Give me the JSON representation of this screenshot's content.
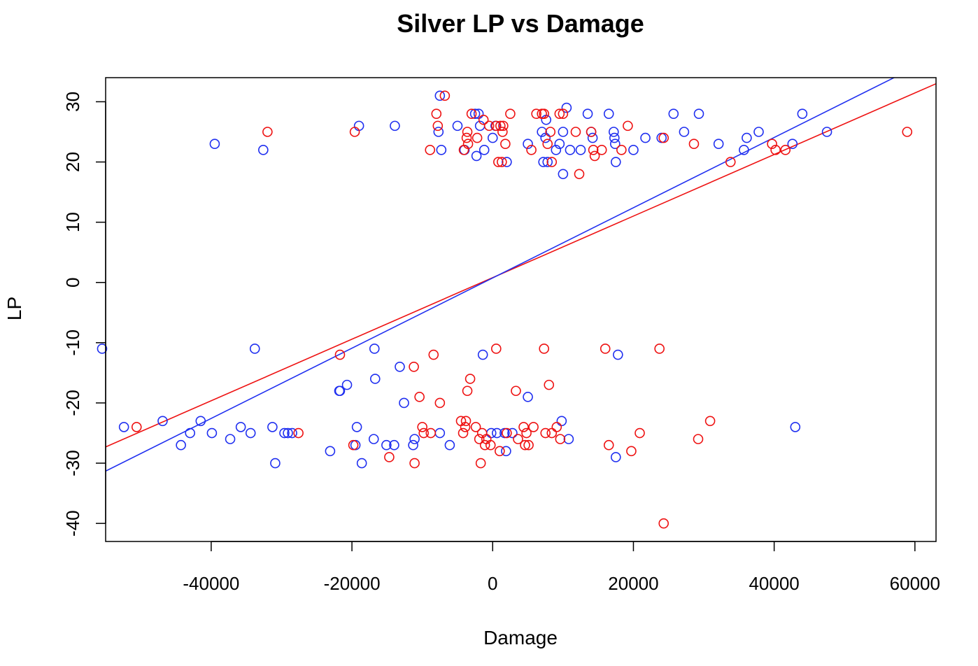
{
  "chart_data": {
    "type": "scatter",
    "title": "Silver LP vs Damage",
    "xlabel": "Damage",
    "ylabel": "LP",
    "xlim": [
      -55000,
      63000
    ],
    "ylim": [
      -43,
      34
    ],
    "xticks": [
      -40000,
      -20000,
      0,
      20000,
      40000,
      60000
    ],
    "yticks": [
      -40,
      -30,
      -20,
      -10,
      0,
      10,
      20,
      30
    ],
    "xtick_labels": [
      "-40000",
      "-20000",
      "0",
      "20000",
      "40000",
      "60000"
    ],
    "ytick_labels": [
      "-40",
      "-30",
      "-20",
      "-10",
      "0",
      "10",
      "20",
      "30"
    ],
    "grid": false,
    "colors": {
      "blue": "#1f2ff0",
      "red": "#ee1111"
    },
    "series": [
      {
        "color": "blue",
        "points": [
          [
            -7500,
            31
          ],
          [
            -7700,
            25
          ],
          [
            -7300,
            22
          ],
          [
            -5000,
            26
          ],
          [
            -4000,
            22
          ],
          [
            -2500,
            28
          ],
          [
            -2000,
            28
          ],
          [
            -2300,
            21
          ],
          [
            -1800,
            26
          ],
          [
            -1200,
            22
          ],
          [
            0,
            24
          ],
          [
            400,
            26
          ],
          [
            2000,
            20
          ],
          [
            5000,
            23
          ],
          [
            7000,
            25
          ],
          [
            7200,
            20
          ],
          [
            7500,
            24
          ],
          [
            7600,
            27
          ],
          [
            7800,
            20
          ],
          [
            9000,
            22
          ],
          [
            9500,
            23
          ],
          [
            10000,
            18
          ],
          [
            10000,
            25
          ],
          [
            10500,
            29
          ],
          [
            11000,
            22
          ],
          [
            12500,
            22
          ],
          [
            13500,
            28
          ],
          [
            14000,
            25
          ],
          [
            14200,
            24
          ],
          [
            16500,
            28
          ],
          [
            17200,
            25
          ],
          [
            17300,
            24
          ],
          [
            17400,
            23
          ],
          [
            17500,
            20
          ],
          [
            20000,
            22
          ],
          [
            21700,
            24
          ],
          [
            24000,
            24
          ],
          [
            25700,
            28
          ],
          [
            27200,
            25
          ],
          [
            29300,
            28
          ],
          [
            32100,
            23
          ],
          [
            35700,
            22
          ],
          [
            36100,
            24
          ],
          [
            37800,
            25
          ],
          [
            42600,
            23
          ],
          [
            44000,
            28
          ],
          [
            47500,
            25
          ],
          [
            -19000,
            26
          ],
          [
            -13900,
            26
          ],
          [
            -32600,
            22
          ],
          [
            -39500,
            23
          ],
          [
            -55500,
            -11
          ],
          [
            -33800,
            -11
          ],
          [
            -21800,
            -18
          ],
          [
            -21700,
            -18
          ],
          [
            -20700,
            -17
          ],
          [
            -16800,
            -11
          ],
          [
            -16700,
            -16
          ],
          [
            -13200,
            -14
          ],
          [
            -12600,
            -20
          ],
          [
            -11300,
            -27
          ],
          [
            -11100,
            -26
          ],
          [
            -7500,
            -25
          ],
          [
            -6100,
            -27
          ],
          [
            -1400,
            -12
          ],
          [
            1900,
            -28
          ],
          [
            5000,
            -19
          ],
          [
            9800,
            -23
          ],
          [
            10800,
            -26
          ],
          [
            17500,
            -29
          ],
          [
            17800,
            -12
          ],
          [
            43000,
            -24
          ],
          [
            -52400,
            -24
          ],
          [
            -46900,
            -23
          ],
          [
            -44300,
            -27
          ],
          [
            -43000,
            -25
          ],
          [
            -41500,
            -23
          ],
          [
            -39900,
            -25
          ],
          [
            -37300,
            -26
          ],
          [
            -35800,
            -24
          ],
          [
            -34400,
            -25
          ],
          [
            -31300,
            -24
          ],
          [
            -30900,
            -30
          ],
          [
            -29600,
            -25
          ],
          [
            -29100,
            -25
          ],
          [
            -28500,
            -25
          ],
          [
            -23100,
            -28
          ],
          [
            -19500,
            -27
          ],
          [
            -19300,
            -24
          ],
          [
            -18600,
            -30
          ],
          [
            -16900,
            -26
          ],
          [
            -15100,
            -27
          ],
          [
            -14000,
            -27
          ],
          [
            -200,
            -25
          ],
          [
            600,
            -25
          ],
          [
            1700,
            -25
          ],
          [
            2800,
            -25
          ]
        ]
      },
      {
        "color": "red",
        "points": [
          [
            -6800,
            31
          ],
          [
            -8000,
            28
          ],
          [
            -7800,
            26
          ],
          [
            -8900,
            22
          ],
          [
            -4100,
            22
          ],
          [
            -3700,
            24
          ],
          [
            -3600,
            25
          ],
          [
            -3500,
            23
          ],
          [
            -3000,
            28
          ],
          [
            -2200,
            24
          ],
          [
            -1300,
            27
          ],
          [
            -500,
            26
          ],
          [
            500,
            26
          ],
          [
            800,
            20
          ],
          [
            1100,
            26
          ],
          [
            1300,
            20
          ],
          [
            1400,
            25
          ],
          [
            1500,
            26
          ],
          [
            1800,
            23
          ],
          [
            2500,
            28
          ],
          [
            5500,
            22
          ],
          [
            6200,
            28
          ],
          [
            7000,
            28
          ],
          [
            7300,
            28
          ],
          [
            7800,
            23
          ],
          [
            8400,
            20
          ],
          [
            8200,
            25
          ],
          [
            9500,
            28
          ],
          [
            10000,
            28
          ],
          [
            11800,
            25
          ],
          [
            12300,
            18
          ],
          [
            14000,
            25
          ],
          [
            14300,
            22
          ],
          [
            14500,
            21
          ],
          [
            15500,
            22
          ],
          [
            18300,
            22
          ],
          [
            19200,
            26
          ],
          [
            24300,
            24
          ],
          [
            28600,
            23
          ],
          [
            33800,
            20
          ],
          [
            39700,
            23
          ],
          [
            40200,
            22
          ],
          [
            41600,
            22
          ],
          [
            58900,
            25
          ],
          [
            -32000,
            25
          ],
          [
            -19600,
            25
          ],
          [
            -21700,
            -12
          ],
          [
            -19800,
            -27
          ],
          [
            -14700,
            -29
          ],
          [
            -11200,
            -14
          ],
          [
            -11100,
            -30
          ],
          [
            -10400,
            -19
          ],
          [
            -10000,
            -24
          ],
          [
            -9800,
            -25
          ],
          [
            -8800,
            -25
          ],
          [
            -8400,
            -12
          ],
          [
            -7500,
            -20
          ],
          [
            -4500,
            -23
          ],
          [
            -4200,
            -25
          ],
          [
            -3900,
            -24
          ],
          [
            -3800,
            -23
          ],
          [
            -3600,
            -18
          ],
          [
            -3200,
            -16
          ],
          [
            -2400,
            -24
          ],
          [
            -1900,
            -26
          ],
          [
            -1700,
            -30
          ],
          [
            -1500,
            -25
          ],
          [
            -1100,
            -27
          ],
          [
            -900,
            -26
          ],
          [
            -300,
            -27
          ],
          [
            500,
            -11
          ],
          [
            1000,
            -28
          ],
          [
            2000,
            -25
          ],
          [
            3300,
            -18
          ],
          [
            3600,
            -26
          ],
          [
            4400,
            -24
          ],
          [
            4600,
            -27
          ],
          [
            4800,
            -25
          ],
          [
            5100,
            -27
          ],
          [
            5800,
            -24
          ],
          [
            7300,
            -11
          ],
          [
            7500,
            -25
          ],
          [
            8000,
            -17
          ],
          [
            8400,
            -25
          ],
          [
            9100,
            -24
          ],
          [
            9600,
            -26
          ],
          [
            16000,
            -11
          ],
          [
            16500,
            -27
          ],
          [
            19700,
            -28
          ],
          [
            20900,
            -25
          ],
          [
            23700,
            -11
          ],
          [
            24300,
            -40
          ],
          [
            29200,
            -26
          ],
          [
            30900,
            -23
          ],
          [
            -50600,
            -24
          ],
          [
            -27600,
            -25
          ]
        ]
      }
    ],
    "fit_lines": [
      {
        "color": "red",
        "slope": 0.000511,
        "intercept": 0.8
      },
      {
        "color": "blue",
        "slope": 0.000583,
        "intercept": 0.75
      }
    ]
  }
}
